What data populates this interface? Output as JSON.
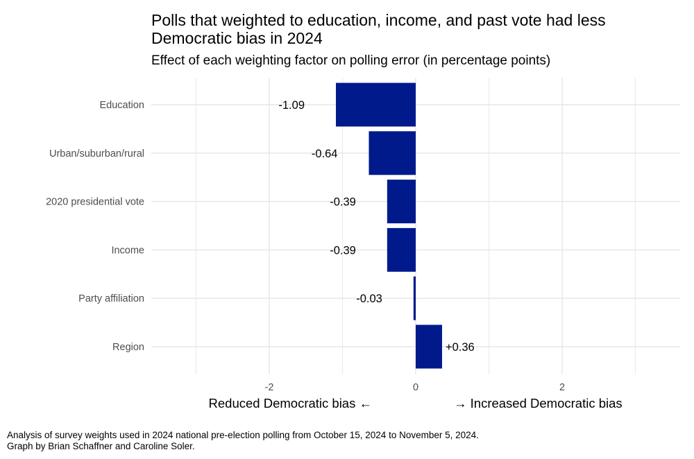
{
  "chart_data": {
    "type": "bar",
    "orientation": "horizontal",
    "title": "Polls that weighted to education, income, and past vote had less Democratic bias in 2024",
    "subtitle": "Effect of each weighting factor on polling error (in percentage points)",
    "xlabel_left": "Reduced Democratic bias ←",
    "xlabel_right": "→ Increased Democratic bias",
    "categories": [
      "Education",
      "Urban/suburban/rural",
      "2020 presidential vote",
      "Income",
      "Party affiliation",
      "Region"
    ],
    "values": [
      -1.09,
      -0.64,
      -0.39,
      -0.39,
      -0.03,
      0.36
    ],
    "value_labels": [
      "-1.09",
      "-0.64",
      "-0.39",
      "-0.39",
      "-0.03",
      "+0.36"
    ],
    "xticks": [
      -2,
      0,
      2
    ],
    "xtick_labels": [
      "-2",
      "0",
      "2"
    ],
    "xlim": [
      -3.5,
      3.5
    ],
    "grid": true,
    "bar_color": "#001A8C"
  },
  "caption": {
    "line1": "Analysis of survey weights used in 2024 national pre-election polling from October 15, 2024 to November 5, 2024.",
    "line2": "Graph by Brian Schaffner and Caroline Soler."
  }
}
